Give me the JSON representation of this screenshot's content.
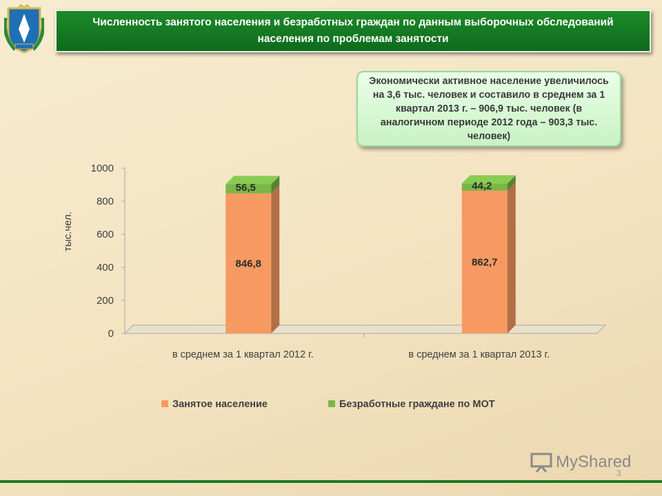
{
  "header": {
    "title": "Численность занятого  населения и безработных граждан по данным выборочных обследований населения по проблемам занятости"
  },
  "callout": {
    "text": "Экономически активное население увеличилось на 3,6 тыс. человек и составило в среднем за 1 квартал 2013 г. – 906,9 тыс. человек (в аналогичном периоде 2012 года – 903,3 тыс. человек)"
  },
  "colors": {
    "employed": "#f79a62",
    "unemployed": "#7ab648",
    "header_bg": "#137a22"
  },
  "chart_data": {
    "type": "bar",
    "stacked": true,
    "categories": [
      "в среднем за 1 квартал 2012 г.",
      "в среднем за 1 квартал 2013 г."
    ],
    "series": [
      {
        "name": "Занятое население",
        "values": [
          846.8,
          862.7
        ],
        "labels": [
          "846,8",
          "862,7"
        ]
      },
      {
        "name": "Безработные граждане по МОТ",
        "values": [
          56.5,
          44.2
        ],
        "labels": [
          "56,5",
          "44,2"
        ]
      }
    ],
    "ylabel": "тыс.чел.",
    "ylim": [
      0,
      1000
    ],
    "yticks": [
      "0",
      "200",
      "400",
      "600",
      "800",
      "1000"
    ],
    "legend_position": "bottom"
  },
  "footer": {
    "watermark": "MyShared",
    "page_number": "3"
  }
}
